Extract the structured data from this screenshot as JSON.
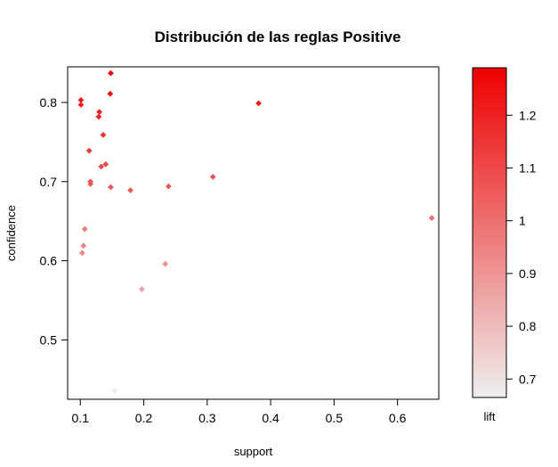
{
  "chart_data": {
    "type": "scatter",
    "title": "Distribución de las reglas Positive",
    "xlabel": "support",
    "ylabel": "confidence",
    "xlim": [
      0.08,
      0.665
    ],
    "ylim": [
      0.425,
      0.845
    ],
    "x_ticks": [
      "0.1",
      "0.2",
      "0.3",
      "0.4",
      "0.5",
      "0.6"
    ],
    "y_ticks": [
      "0.5",
      "0.6",
      "0.7",
      "0.8"
    ],
    "grid": false,
    "color_scale": {
      "label": "lift",
      "range": [
        0.665,
        1.29
      ],
      "ticks": [
        "0.7",
        "0.8",
        "0.9",
        "1",
        "1.1",
        "1.2"
      ],
      "low_color": "#eeeeee",
      "high_color": "#ee0000"
    },
    "points": [
      {
        "support": 0.148,
        "confidence": 0.837,
        "lift": 1.28
      },
      {
        "support": 0.147,
        "confidence": 0.811,
        "lift": 1.24
      },
      {
        "support": 0.101,
        "confidence": 0.803,
        "lift": 1.22
      },
      {
        "support": 0.101,
        "confidence": 0.797,
        "lift": 1.21
      },
      {
        "support": 0.381,
        "confidence": 0.799,
        "lift": 1.22
      },
      {
        "support": 0.13,
        "confidence": 0.788,
        "lift": 1.2
      },
      {
        "support": 0.129,
        "confidence": 0.782,
        "lift": 1.19
      },
      {
        "support": 0.136,
        "confidence": 0.759,
        "lift": 1.16
      },
      {
        "support": 0.114,
        "confidence": 0.739,
        "lift": 1.13
      },
      {
        "support": 0.14,
        "confidence": 0.722,
        "lift": 1.1
      },
      {
        "support": 0.133,
        "confidence": 0.719,
        "lift": 1.1
      },
      {
        "support": 0.309,
        "confidence": 0.706,
        "lift": 1.07
      },
      {
        "support": 0.116,
        "confidence": 0.7,
        "lift": 1.07
      },
      {
        "support": 0.116,
        "confidence": 0.697,
        "lift": 1.06
      },
      {
        "support": 0.239,
        "confidence": 0.694,
        "lift": 1.06
      },
      {
        "support": 0.148,
        "confidence": 0.693,
        "lift": 1.06
      },
      {
        "support": 0.179,
        "confidence": 0.689,
        "lift": 1.05
      },
      {
        "support": 0.654,
        "confidence": 0.654,
        "lift": 1.0
      },
      {
        "support": 0.107,
        "confidence": 0.64,
        "lift": 0.97
      },
      {
        "support": 0.105,
        "confidence": 0.619,
        "lift": 0.94
      },
      {
        "support": 0.103,
        "confidence": 0.61,
        "lift": 0.93
      },
      {
        "support": 0.234,
        "confidence": 0.596,
        "lift": 0.91
      },
      {
        "support": 0.197,
        "confidence": 0.564,
        "lift": 0.86
      },
      {
        "support": 0.154,
        "confidence": 0.436,
        "lift": 0.68
      }
    ]
  }
}
